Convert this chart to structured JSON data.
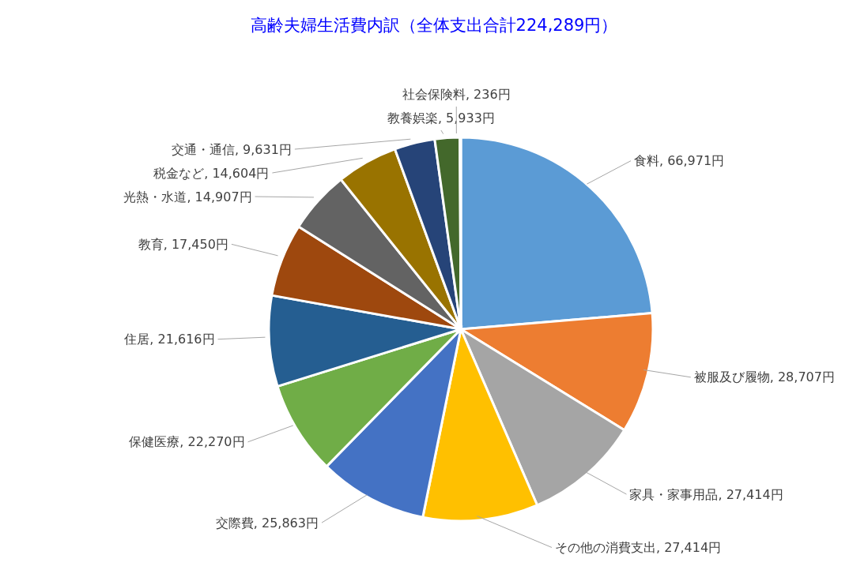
{
  "chart_data": {
    "type": "pie",
    "title": "高齢夫婦生活費内訳（全体支出合計224,289円）",
    "categories": [
      "食料",
      "被服及び履物",
      "家具・家事用品",
      "その他の消費支出",
      "交際費",
      "保健医療",
      "住居",
      "教育",
      "光熱・水道",
      "税金など",
      "交通・通信",
      "教養娯楽",
      "社会保険料"
    ],
    "values": [
      66971,
      28707,
      27414,
      27414,
      25863,
      22270,
      21616,
      17450,
      14907,
      14604,
      9631,
      5933,
      236
    ],
    "value_labels": [
      "66,971円",
      "28,707円",
      "27,414円",
      "27,414円",
      "25,863円",
      "22,270円",
      "21,616円",
      "17,450円",
      "14,907円",
      "14,604円",
      "9,631円",
      "5,933円",
      "236円"
    ],
    "colors": [
      "#5b9bd5",
      "#ed7d31",
      "#a5a5a5",
      "#ffc000",
      "#4472c4",
      "#70ad47",
      "#255e91",
      "#9e480e",
      "#636363",
      "#997300",
      "#264478",
      "#43682b",
      "#698ed0"
    ],
    "legend": false
  }
}
